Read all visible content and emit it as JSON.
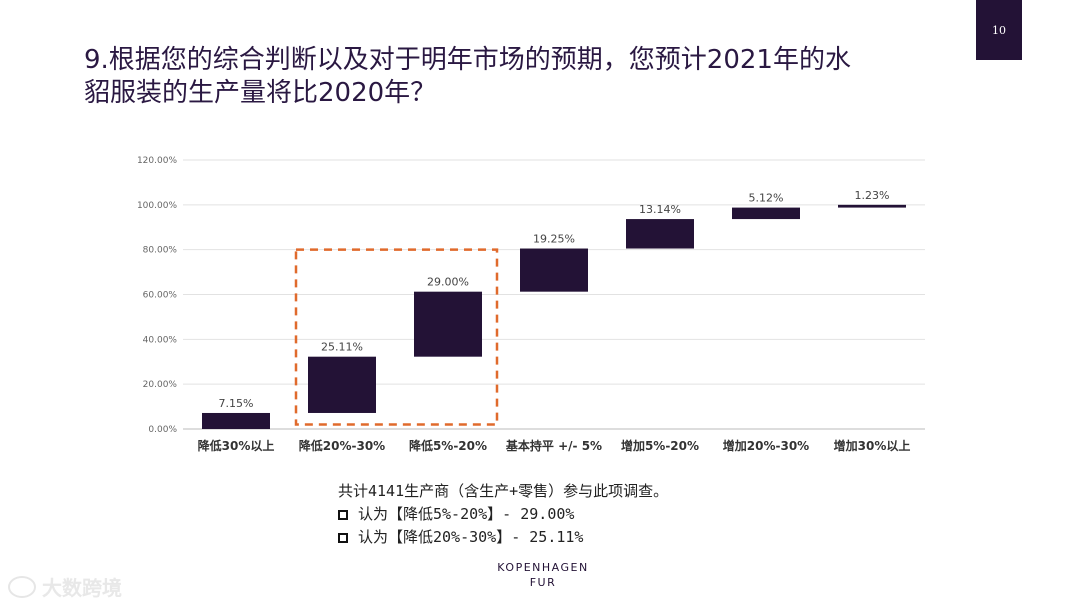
{
  "page_number": "10",
  "title_line1": "9.根据您的综合判断以及对于明年市场的预期，您预计2021年的水",
  "title_line2": "貂服装的生产量将比2020年？",
  "chart_data": {
    "type": "bar",
    "subtype": "waterfall",
    "categories": [
      "降低30%以上",
      "降低20%-30%",
      "降低5%-20%",
      "基本持平 +/- 5%",
      "增加5%-20%",
      "增加20%-30%",
      "增加30%以上"
    ],
    "values": [
      7.15,
      25.11,
      29.0,
      19.25,
      13.14,
      5.12,
      1.23
    ],
    "value_labels": [
      "7.15%",
      "25.11%",
      "29.00%",
      "19.25%",
      "13.14%",
      "5.12%",
      "1.23%"
    ],
    "ylim": [
      0,
      120
    ],
    "yticks": [
      "0.00%",
      "20.00%",
      "40.00%",
      "60.00%",
      "80.00%",
      "100.00%",
      "120.00%"
    ],
    "highlight": {
      "from_category": "降低20%-30%",
      "to_category": "降低5%-20%",
      "color": "#e06a2c"
    },
    "bar_color": "#231236",
    "grid": true
  },
  "note": {
    "line1": "共计4141生产商（含生产+零售）参与此项调查。",
    "items": [
      "认为【降低5%-20%】- 29.00%",
      "认为【降低20%-30%】- 25.11%"
    ]
  },
  "logo": {
    "line1": "KOPENHAGEN",
    "line2": "FUR"
  },
  "watermark": "大数跨境"
}
